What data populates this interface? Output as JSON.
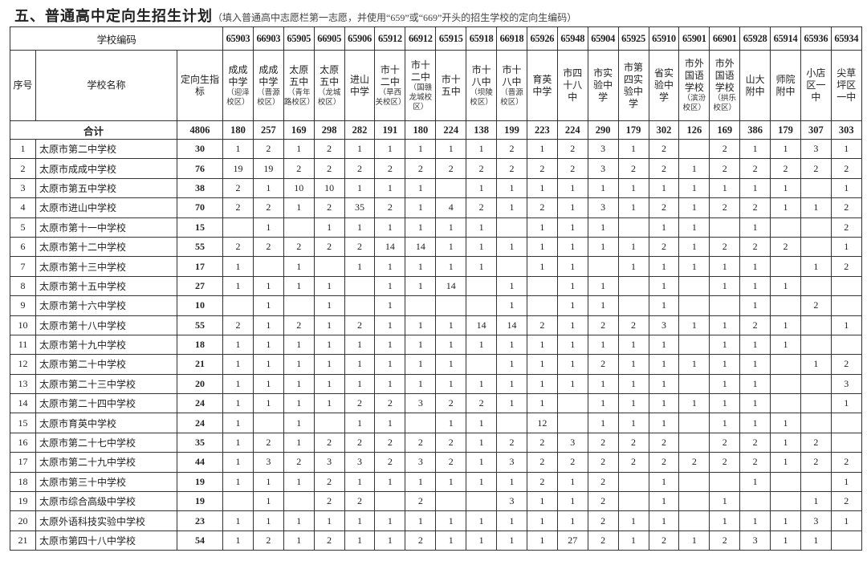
{
  "title": {
    "main": "五、普通高中定向生招生计划",
    "note": "（填入普通高中志愿栏第一志愿，并使用“659”或“669”开头的招生学校的定向生编码）"
  },
  "headers": {
    "school_code": "学校编码",
    "no": "序号",
    "school_name": "学校名称",
    "quota": "定向生指标",
    "total_label": "合计",
    "total_quota": "4806"
  },
  "columns": [
    {
      "code": "65903",
      "name": "成成中学",
      "campus": "（迎泽校区）",
      "total": "180"
    },
    {
      "code": "66903",
      "name": "成成中学",
      "campus": "（晋源校区）",
      "total": "257"
    },
    {
      "code": "65905",
      "name": "太原五中",
      "campus": "（青年路校区）",
      "total": "169"
    },
    {
      "code": "66905",
      "name": "太原五中",
      "campus": "（龙城校区）",
      "total": "298"
    },
    {
      "code": "65906",
      "name": "进山中学",
      "campus": "",
      "total": "282"
    },
    {
      "code": "65912",
      "name": "市十二中",
      "campus": "（旱西关校区）",
      "total": "191"
    },
    {
      "code": "66912",
      "name": "市十二中",
      "campus": "（国赣龙城校区）",
      "total": "180"
    },
    {
      "code": "65915",
      "name": "市十五中",
      "campus": "",
      "total": "224"
    },
    {
      "code": "65918",
      "name": "市十八中",
      "campus": "（坝陵校区）",
      "total": "138"
    },
    {
      "code": "66918",
      "name": "市十八中",
      "campus": "（晋源校区）",
      "total": "199"
    },
    {
      "code": "65926",
      "name": "育英中学",
      "campus": "",
      "total": "223"
    },
    {
      "code": "65948",
      "name": "市四十八中",
      "campus": "",
      "total": "224"
    },
    {
      "code": "65904",
      "name": "市实验中学",
      "campus": "",
      "total": "290"
    },
    {
      "code": "65925",
      "name": "市第四实验中学",
      "campus": "",
      "total": "179"
    },
    {
      "code": "65910",
      "name": "省实验中学",
      "campus": "",
      "total": "302"
    },
    {
      "code": "65901",
      "name": "市外国语学校",
      "campus": "（滨汾校区）",
      "total": "126"
    },
    {
      "code": "66901",
      "name": "市外国语学校",
      "campus": "（拱乐校区）",
      "total": "169"
    },
    {
      "code": "65928",
      "name": "山大附中",
      "campus": "",
      "total": "386"
    },
    {
      "code": "65914",
      "name": "师院附中",
      "campus": "",
      "total": "179"
    },
    {
      "code": "65936",
      "name": "小店区一中",
      "campus": "",
      "total": "307"
    },
    {
      "code": "65934",
      "name": "尖草坪区一中",
      "campus": "",
      "total": "303"
    }
  ],
  "rows": [
    {
      "no": "1",
      "name": "太原市第二中学校",
      "quota": "30",
      "values": [
        "1",
        "2",
        "1",
        "2",
        "1",
        "1",
        "1",
        "1",
        "1",
        "2",
        "1",
        "2",
        "3",
        "1",
        "2",
        "",
        "2",
        "1",
        "1",
        "3",
        "1"
      ]
    },
    {
      "no": "2",
      "name": "太原市成成中学校",
      "quota": "76",
      "values": [
        "19",
        "19",
        "2",
        "2",
        "2",
        "2",
        "2",
        "2",
        "2",
        "2",
        "2",
        "2",
        "3",
        "2",
        "2",
        "1",
        "2",
        "2",
        "2",
        "2",
        "2"
      ]
    },
    {
      "no": "3",
      "name": "太原市第五中学校",
      "quota": "38",
      "values": [
        "2",
        "1",
        "10",
        "10",
        "1",
        "1",
        "1",
        "",
        "1",
        "1",
        "1",
        "1",
        "1",
        "1",
        "1",
        "1",
        "1",
        "1",
        "1",
        "",
        "1"
      ]
    },
    {
      "no": "4",
      "name": "太原市进山中学校",
      "quota": "70",
      "values": [
        "2",
        "2",
        "1",
        "2",
        "35",
        "2",
        "1",
        "4",
        "2",
        "1",
        "2",
        "1",
        "3",
        "1",
        "2",
        "1",
        "2",
        "2",
        "1",
        "1",
        "2"
      ]
    },
    {
      "no": "5",
      "name": "太原市第十一中学校",
      "quota": "15",
      "values": [
        "",
        "1",
        "",
        "1",
        "1",
        "1",
        "1",
        "1",
        "1",
        "",
        "1",
        "1",
        "1",
        "",
        "1",
        "1",
        "",
        "1",
        "",
        "",
        "2"
      ]
    },
    {
      "no": "6",
      "name": "太原市第十二中学校",
      "quota": "55",
      "values": [
        "2",
        "2",
        "2",
        "2",
        "2",
        "14",
        "14",
        "1",
        "1",
        "1",
        "1",
        "1",
        "1",
        "1",
        "2",
        "1",
        "2",
        "2",
        "2",
        "",
        "1"
      ]
    },
    {
      "no": "7",
      "name": "太原市第十三中学校",
      "quota": "17",
      "values": [
        "1",
        "",
        "1",
        "",
        "1",
        "1",
        "1",
        "1",
        "1",
        "",
        "1",
        "1",
        "",
        "1",
        "1",
        "1",
        "1",
        "1",
        "",
        "1",
        "2"
      ]
    },
    {
      "no": "8",
      "name": "太原市第十五中学校",
      "quota": "27",
      "values": [
        "1",
        "1",
        "1",
        "1",
        "",
        "1",
        "1",
        "14",
        "",
        "1",
        "",
        "1",
        "1",
        "",
        "1",
        "",
        "1",
        "1",
        "1",
        "",
        ""
      ]
    },
    {
      "no": "9",
      "name": "太原市第十六中学校",
      "quota": "10",
      "values": [
        "",
        "1",
        "",
        "1",
        "",
        "1",
        "",
        "",
        "",
        "1",
        "",
        "1",
        "1",
        "",
        "1",
        "",
        "",
        "1",
        "",
        "2",
        ""
      ]
    },
    {
      "no": "10",
      "name": "太原市第十八中学校",
      "quota": "55",
      "values": [
        "2",
        "1",
        "2",
        "1",
        "2",
        "1",
        "1",
        "1",
        "14",
        "14",
        "2",
        "1",
        "2",
        "2",
        "3",
        "1",
        "1",
        "2",
        "1",
        "",
        "1"
      ]
    },
    {
      "no": "11",
      "name": "太原市第十九中学校",
      "quota": "18",
      "values": [
        "1",
        "1",
        "1",
        "1",
        "1",
        "1",
        "1",
        "1",
        "1",
        "1",
        "1",
        "1",
        "1",
        "1",
        "1",
        "",
        "1",
        "1",
        "1",
        "",
        ""
      ]
    },
    {
      "no": "12",
      "name": "太原市第二十中学校",
      "quota": "21",
      "values": [
        "1",
        "1",
        "1",
        "1",
        "1",
        "1",
        "1",
        "1",
        "",
        "1",
        "1",
        "1",
        "2",
        "1",
        "1",
        "1",
        "1",
        "1",
        "",
        "1",
        "2"
      ]
    },
    {
      "no": "13",
      "name": "太原市第二十三中学校",
      "quota": "20",
      "values": [
        "1",
        "1",
        "1",
        "1",
        "1",
        "1",
        "1",
        "1",
        "1",
        "1",
        "1",
        "1",
        "1",
        "1",
        "1",
        "",
        "1",
        "1",
        "",
        "",
        "3"
      ]
    },
    {
      "no": "14",
      "name": "太原市第二十四中学校",
      "quota": "24",
      "values": [
        "1",
        "1",
        "1",
        "1",
        "2",
        "2",
        "3",
        "2",
        "2",
        "1",
        "1",
        "",
        "1",
        "1",
        "1",
        "1",
        "1",
        "1",
        "",
        "",
        "1"
      ]
    },
    {
      "no": "15",
      "name": "太原市育英中学校",
      "quota": "24",
      "values": [
        "1",
        "",
        "1",
        "",
        "1",
        "1",
        "",
        "1",
        "1",
        "",
        "12",
        "",
        "1",
        "1",
        "1",
        "",
        "1",
        "1",
        "1",
        "",
        ""
      ]
    },
    {
      "no": "16",
      "name": "太原市第二十七中学校",
      "quota": "35",
      "values": [
        "1",
        "2",
        "1",
        "2",
        "2",
        "2",
        "2",
        "2",
        "1",
        "2",
        "2",
        "3",
        "2",
        "2",
        "2",
        "",
        "2",
        "2",
        "1",
        "2",
        ""
      ]
    },
    {
      "no": "17",
      "name": "太原市第二十九中学校",
      "quota": "44",
      "values": [
        "1",
        "3",
        "2",
        "3",
        "3",
        "2",
        "3",
        "2",
        "1",
        "3",
        "2",
        "2",
        "2",
        "2",
        "2",
        "2",
        "2",
        "2",
        "1",
        "2",
        "2"
      ]
    },
    {
      "no": "18",
      "name": "太原市第三十中学校",
      "quota": "19",
      "values": [
        "1",
        "1",
        "1",
        "2",
        "1",
        "1",
        "1",
        "1",
        "1",
        "1",
        "2",
        "1",
        "2",
        "",
        "1",
        "",
        "",
        "1",
        "",
        "",
        "1"
      ]
    },
    {
      "no": "19",
      "name": "太原市综合高级中学校",
      "quota": "19",
      "values": [
        "",
        "1",
        "",
        "2",
        "2",
        "",
        "2",
        "",
        "",
        "3",
        "1",
        "1",
        "2",
        "",
        "1",
        "",
        "1",
        "",
        "",
        "1",
        "2"
      ]
    },
    {
      "no": "20",
      "name": "太原外语科技实验中学校",
      "quota": "23",
      "values": [
        "1",
        "1",
        "1",
        "1",
        "1",
        "1",
        "1",
        "1",
        "1",
        "1",
        "1",
        "1",
        "2",
        "1",
        "1",
        "",
        "1",
        "1",
        "1",
        "3",
        "1"
      ]
    },
    {
      "no": "21",
      "name": "太原市第四十八中学校",
      "quota": "54",
      "values": [
        "1",
        "2",
        "1",
        "2",
        "1",
        "1",
        "2",
        "1",
        "1",
        "1",
        "1",
        "27",
        "2",
        "1",
        "2",
        "1",
        "2",
        "3",
        "1",
        "1",
        ""
      ]
    }
  ]
}
